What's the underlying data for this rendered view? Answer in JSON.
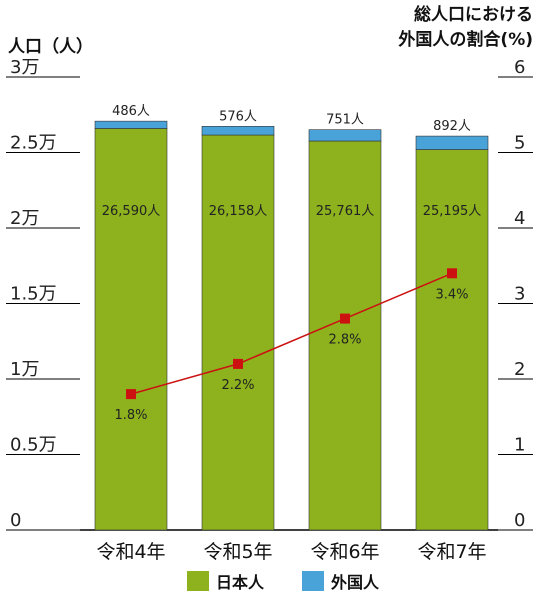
{
  "chart_data": {
    "type": "bar",
    "stacked": true,
    "categories": [
      "令和4年",
      "令和5年",
      "令和6年",
      "令和7年"
    ],
    "series": [
      {
        "name": "日本人",
        "color": "#8db21e",
        "values": [
          26590,
          26158,
          25761,
          25195
        ],
        "labels": [
          "26,590人",
          "26,158人",
          "25,761人",
          "25,195人"
        ]
      },
      {
        "name": "外国人",
        "color": "#4aa3d8",
        "values": [
          486,
          576,
          751,
          892
        ],
        "labels": [
          "486人",
          "576人",
          "751人",
          "892人"
        ]
      }
    ],
    "line": {
      "color": "#cc1111",
      "values": [
        1.8,
        2.2,
        2.8,
        3.4
      ],
      "labels": [
        "1.8%",
        "2.2%",
        "2.8%",
        "3.4%"
      ]
    },
    "ylabel_left": "人口（人）",
    "ylabel_right": [
      "総人口における",
      "外国人の割合(%)"
    ],
    "ylim_left": [
      0,
      30000
    ],
    "ylim_right": [
      0,
      6
    ],
    "left_ticks": [
      {
        "value": 0,
        "label": "0"
      },
      {
        "value": 5000,
        "label": "0.5万"
      },
      {
        "value": 10000,
        "label": "1万"
      },
      {
        "value": 15000,
        "label": "1.5万"
      },
      {
        "value": 20000,
        "label": "2万"
      },
      {
        "value": 25000,
        "label": "2.5万"
      },
      {
        "value": 30000,
        "label": "3万"
      }
    ],
    "right_ticks": [
      {
        "value": 0,
        "label": "0"
      },
      {
        "value": 1,
        "label": "1"
      },
      {
        "value": 2,
        "label": "2"
      },
      {
        "value": 3,
        "label": "3"
      },
      {
        "value": 4,
        "label": "4"
      },
      {
        "value": 5,
        "label": "5"
      },
      {
        "value": 6,
        "label": "6"
      }
    ],
    "grid": false,
    "legend_position": "bottom"
  }
}
